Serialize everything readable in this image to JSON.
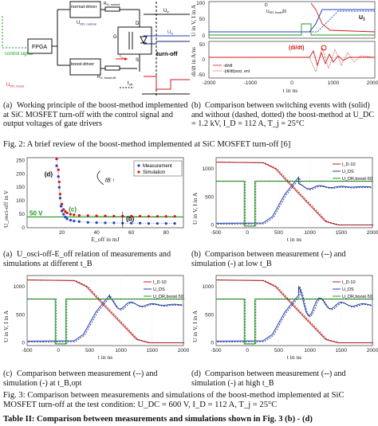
{
  "fig2": {
    "a": {
      "labels": {
        "control_signal": "control signal",
        "fpga": "FPGA",
        "normal_driver": "normal-driver",
        "boost_driver": "boost-driver",
        "u_normal": "U",
        "u_normal_sub": "DR, normal",
        "u_boost": "U",
        "u_boost_sub": "DR, boost",
        "r_normal": "R",
        "r_normal_sub": "G, normal",
        "r_boost": "R",
        "r_boost_sub": "G, boost,off",
        "ig": "I",
        "ig_sub": "G",
        "toff": "t",
        "toff_sub": "off",
        "up": "U",
        "up_sub": "P",
        "un": "U",
        "un_sub": "N",
        "g": "G",
        "s": "S",
        "d": "D",
        "turnoff": "turn-off"
      },
      "caption_label": "(a)",
      "caption": "Working principle of the boost-method implemented at SiC MOSFET turn-off with the control signal and output voltages of gate drivers"
    },
    "b": {
      "caption_label": "(b)",
      "caption": "Comparison between switching events with (solid) and without (dashed, dotted) the boost-method at U_DC = 1.2 kV, I_D = 112 A, T_j = 25°C",
      "xlabel": "t in ns",
      "ylabel_top": "U in V, I in A",
      "ylabel_bot": "di/dt in A/ns",
      "xticks": [
        "-2000",
        "-1000",
        "0",
        "1000",
        "2000"
      ],
      "yticks_top": [
        "0",
        "50",
        "100"
      ],
      "yticks_bot": [
        "-50",
        "0",
        "50"
      ],
      "legend": [
        "-di/dt",
        "-(di/dt)osci, ent"
      ],
      "ann_dildt": "(di/dt)",
      "ann_u1": "U",
      "ann_u1_sub": "1",
      "ann_ud": "U",
      "ann_ud_sub": "DR, boost",
      "ann_ud_val": "20",
      "ann_d": "D"
    },
    "title": "Fig. 2: A brief review of the boost-method implemented at SiC MOSFET turn-off [6]"
  },
  "fig3": {
    "a": {
      "caption_label": "(a)",
      "caption": "U_osci-off-E_off relation of measurements and simulations at different t_B",
      "xlabel": "E_off in mJ",
      "ylabel": "U_osci-off in V",
      "xticks": [
        "20",
        "40",
        "60",
        "80"
      ],
      "yticks": [
        "0",
        "50",
        "100",
        "150",
        "200",
        "250"
      ],
      "legend": [
        "Measurement",
        "Simulation"
      ],
      "ann_d": "(d)",
      "ann_c": "(c)",
      "ann_b": "(b)",
      "ann_50v": "50 V",
      "ann_tb": "t",
      "ann_tb_sub": "B"
    },
    "b": {
      "caption_label": "(b)",
      "caption": "Comparison between measurement (--) and simulation (-) at low t_B",
      "xlabel": "t in ns",
      "ylabel": "U in V, I in A",
      "legend": [
        "I_D·10",
        "U_DS",
        "U_DR,boost·50"
      ]
    },
    "c": {
      "caption_label": "(c)",
      "caption": "Comparison between measurement (--) and simulation (-) at t_B,opt",
      "xlabel": "t in ns",
      "ylabel": "U in V, I in A",
      "legend": [
        "I_D·10",
        "U_DS",
        "U_DR,boost·50"
      ]
    },
    "d": {
      "caption_label": "(d)",
      "caption": "Comparison between measurement (--) and simulation (-) at high t_B",
      "xlabel": "t in ns",
      "ylabel": "U in V, I in A",
      "legend": [
        "I_D·10",
        "U_DS",
        "U_DR,boost·50"
      ]
    },
    "xticks": [
      "-500",
      "0",
      "500",
      "1000",
      "1500",
      "2000"
    ],
    "yticks": [
      "0",
      "500",
      "1000"
    ],
    "title_line1": "Fig. 3: Comparison between measurements and simulations of the boost-method implemented at SiC",
    "title_line2": "MOSFET turn-off at the test condition: U_DC = 600 V, I_D = 112 A, T_j = 25°C"
  },
  "footer_partial": "Table II: Comparison between measurements and simulations shown in Fig. 3 (b) - (d)",
  "colors": {
    "measurement": "#1f3fbf",
    "simulation": "#d01818",
    "green": "#1a9a1a",
    "navy": "#10206a"
  },
  "chart_data": [
    {
      "type": "scatter",
      "title": "",
      "xlabel": "E_off in mJ",
      "ylabel": "U_osci-off in V",
      "xlim": [
        0,
        90
      ],
      "ylim": [
        0,
        260
      ],
      "series": [
        {
          "name": "Measurement",
          "x": [
            17,
            18,
            18.5,
            19,
            19.5,
            20,
            21,
            22,
            23,
            25,
            27,
            30,
            35,
            40,
            45,
            50,
            55,
            60,
            65,
            70,
            75,
            80,
            85
          ],
          "y": [
            230,
            190,
            150,
            110,
            80,
            62,
            50,
            40,
            33,
            28,
            25,
            23,
            20,
            19,
            18,
            18,
            17,
            17,
            17,
            16,
            16,
            16,
            16
          ]
        },
        {
          "name": "Simulation",
          "x": [
            17,
            18,
            18.5,
            19,
            20,
            21,
            22,
            23,
            25,
            27,
            30,
            35,
            40,
            45,
            50,
            55,
            60,
            65,
            70,
            75,
            80,
            85
          ],
          "y": [
            255,
            215,
            170,
            125,
            88,
            68,
            60,
            55,
            50,
            48,
            46,
            45,
            44,
            44,
            43,
            43,
            43,
            43,
            42,
            42,
            42,
            42
          ]
        }
      ]
    }
  ]
}
